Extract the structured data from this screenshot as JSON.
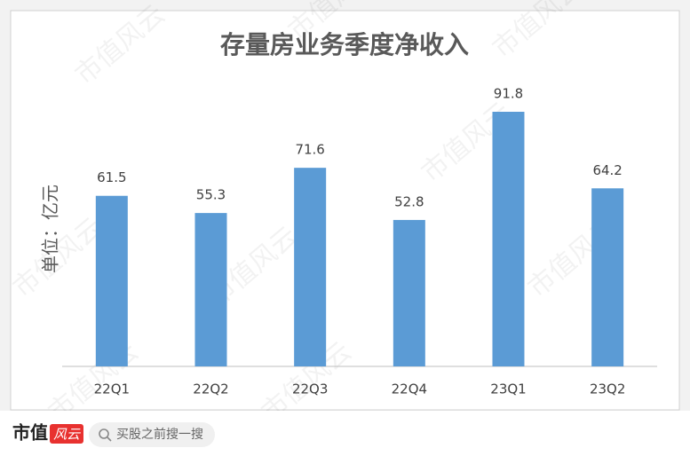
{
  "chart_data": {
    "type": "bar",
    "title": "存量房业务季度净收入",
    "y_label": "单位：亿元",
    "categories": [
      "22Q1",
      "22Q2",
      "22Q3",
      "22Q4",
      "23Q1",
      "23Q2"
    ],
    "values": [
      61.5,
      55.3,
      71.6,
      52.8,
      91.8,
      64.2
    ],
    "color": "#5b9bd5",
    "watermark": "市值风云"
  },
  "footer": {
    "brand": "市值",
    "brand_mark": "风云",
    "search": "买股之前搜一搜"
  }
}
